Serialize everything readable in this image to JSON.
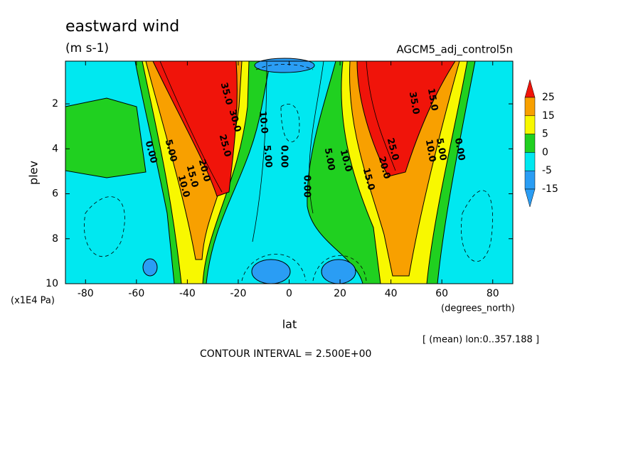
{
  "chart_data": {
    "type": "contour",
    "title": "eastward wind",
    "subtitle": "(m s-1)",
    "dataset": "AGCM5_adj_control5n",
    "x_label": "lat",
    "x_units": "(degrees_north)",
    "y_label": "plev",
    "y_units": "(x1E4 Pa)",
    "xlim": [
      -87.9,
      87.9
    ],
    "ylim": [
      10,
      0.1
    ],
    "xticks": [
      -80,
      -60,
      -40,
      -20,
      0,
      20,
      40,
      60,
      80
    ],
    "yticks": [
      2,
      4,
      6,
      8,
      10
    ],
    "grid": false,
    "colorbar": {
      "levels": [
        25,
        15,
        5,
        0,
        -5,
        -15
      ],
      "colors": [
        "#f0140a",
        "#f8a000",
        "#f8f800",
        "#20d020",
        "#00e8f0",
        "#2a9df4",
        "#2a9df4"
      ]
    },
    "contour_labels": [
      "0.00",
      "5.00",
      "10.0",
      "15.0",
      "20.0",
      "25.0",
      "30.0",
      "35.0",
      "10.0",
      "5.00",
      "0.00",
      "0.00",
      "5.00",
      "10.0",
      "15.0",
      "20.0",
      "25.0",
      "35.0",
      "15.0",
      "10.0",
      "5.00",
      "0.00"
    ],
    "footer": "[ (mean) lon:0..357.188 ]",
    "contour_interval": "CONTOUR INTERVAL = 2.500E+00"
  }
}
